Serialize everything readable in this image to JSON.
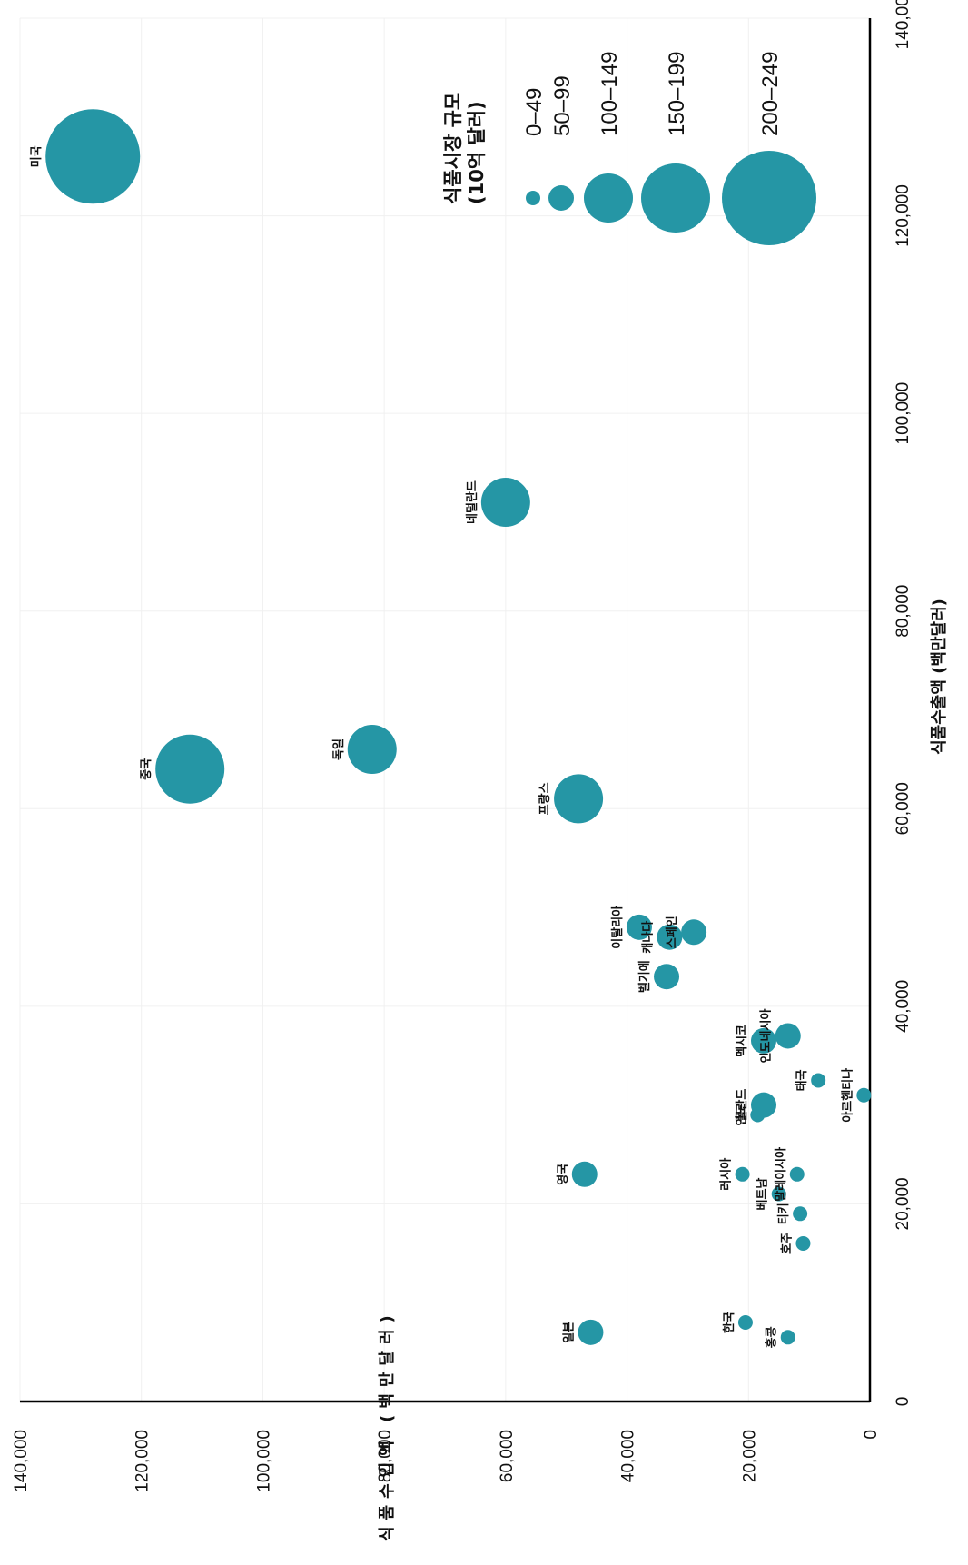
{
  "chart_data": {
    "type": "scatter",
    "xlabel": "식품수출액 (백만달러)",
    "ylabel": "식품수입액 (백만달러)",
    "xlim": [
      0,
      140000
    ],
    "ylim": [
      0,
      140000
    ],
    "x_ticks": [
      "0",
      "20,000",
      "40,000",
      "60,000",
      "80,000",
      "100,000",
      "120,000",
      "140,000"
    ],
    "y_ticks": [
      "0",
      "20,000",
      "40,000",
      "60,000",
      "80,000",
      "100,000",
      "120,000",
      "140,000"
    ],
    "grid": true,
    "color": "#2596a5",
    "legend": {
      "title_lines": [
        "식품시장 규모",
        "(10억 달러)"
      ],
      "placement": "top-right",
      "entries": [
        {
          "label": "0–49",
          "size": 49
        },
        {
          "label": "50–99",
          "size": 99
        },
        {
          "label": "100–149",
          "size": 149
        },
        {
          "label": "150–199",
          "size": 199
        },
        {
          "label": "200–249",
          "size": 249
        }
      ]
    },
    "points": [
      {
        "name": "미국",
        "x": 126000,
        "y": 128000,
        "size": 249
      },
      {
        "name": "중국",
        "x": 64000,
        "y": 112000,
        "size": 199
      },
      {
        "name": "독일",
        "x": 66000,
        "y": 82000,
        "size": 149
      },
      {
        "name": "네덜란드",
        "x": 91000,
        "y": 60000,
        "size": 149
      },
      {
        "name": "프랑스",
        "x": 61000,
        "y": 48000,
        "size": 149
      },
      {
        "name": "일본",
        "x": 7000,
        "y": 46000,
        "size": 99
      },
      {
        "name": "영국",
        "x": 23000,
        "y": 47000,
        "size": 99
      },
      {
        "name": "이탈리아",
        "x": 48000,
        "y": 38000,
        "size": 99
      },
      {
        "name": "캐나다",
        "x": 47000,
        "y": 33000,
        "size": 99
      },
      {
        "name": "스페인",
        "x": 47500,
        "y": 29000,
        "size": 99
      },
      {
        "name": "벨기에",
        "x": 43000,
        "y": 33500,
        "size": 99
      },
      {
        "name": "인도네시아",
        "x": 37000,
        "y": 13500,
        "size": 99
      },
      {
        "name": "멕시코",
        "x": 36500,
        "y": 17500,
        "size": 99
      },
      {
        "name": "폴란드",
        "x": 30000,
        "y": 17500,
        "size": 99
      },
      {
        "name": "인도",
        "x": 29000,
        "y": 18500,
        "size": 49
      },
      {
        "name": "태국",
        "x": 32500,
        "y": 8500,
        "size": 49
      },
      {
        "name": "아르헨티나",
        "x": 31000,
        "y": 1000,
        "size": 49
      },
      {
        "name": "러시아",
        "x": 23000,
        "y": 21000,
        "size": 49
      },
      {
        "name": "말레이시아",
        "x": 23000,
        "y": 12000,
        "size": 49
      },
      {
        "name": "베트남",
        "x": 21000,
        "y": 15000,
        "size": 49
      },
      {
        "name": "티키",
        "x": 19000,
        "y": 11500,
        "size": 49
      },
      {
        "name": "호주",
        "x": 16000,
        "y": 11000,
        "size": 49
      },
      {
        "name": "한국",
        "x": 8000,
        "y": 20500,
        "size": 49
      },
      {
        "name": "홍콩",
        "x": 6500,
        "y": 13500,
        "size": 49
      }
    ]
  }
}
